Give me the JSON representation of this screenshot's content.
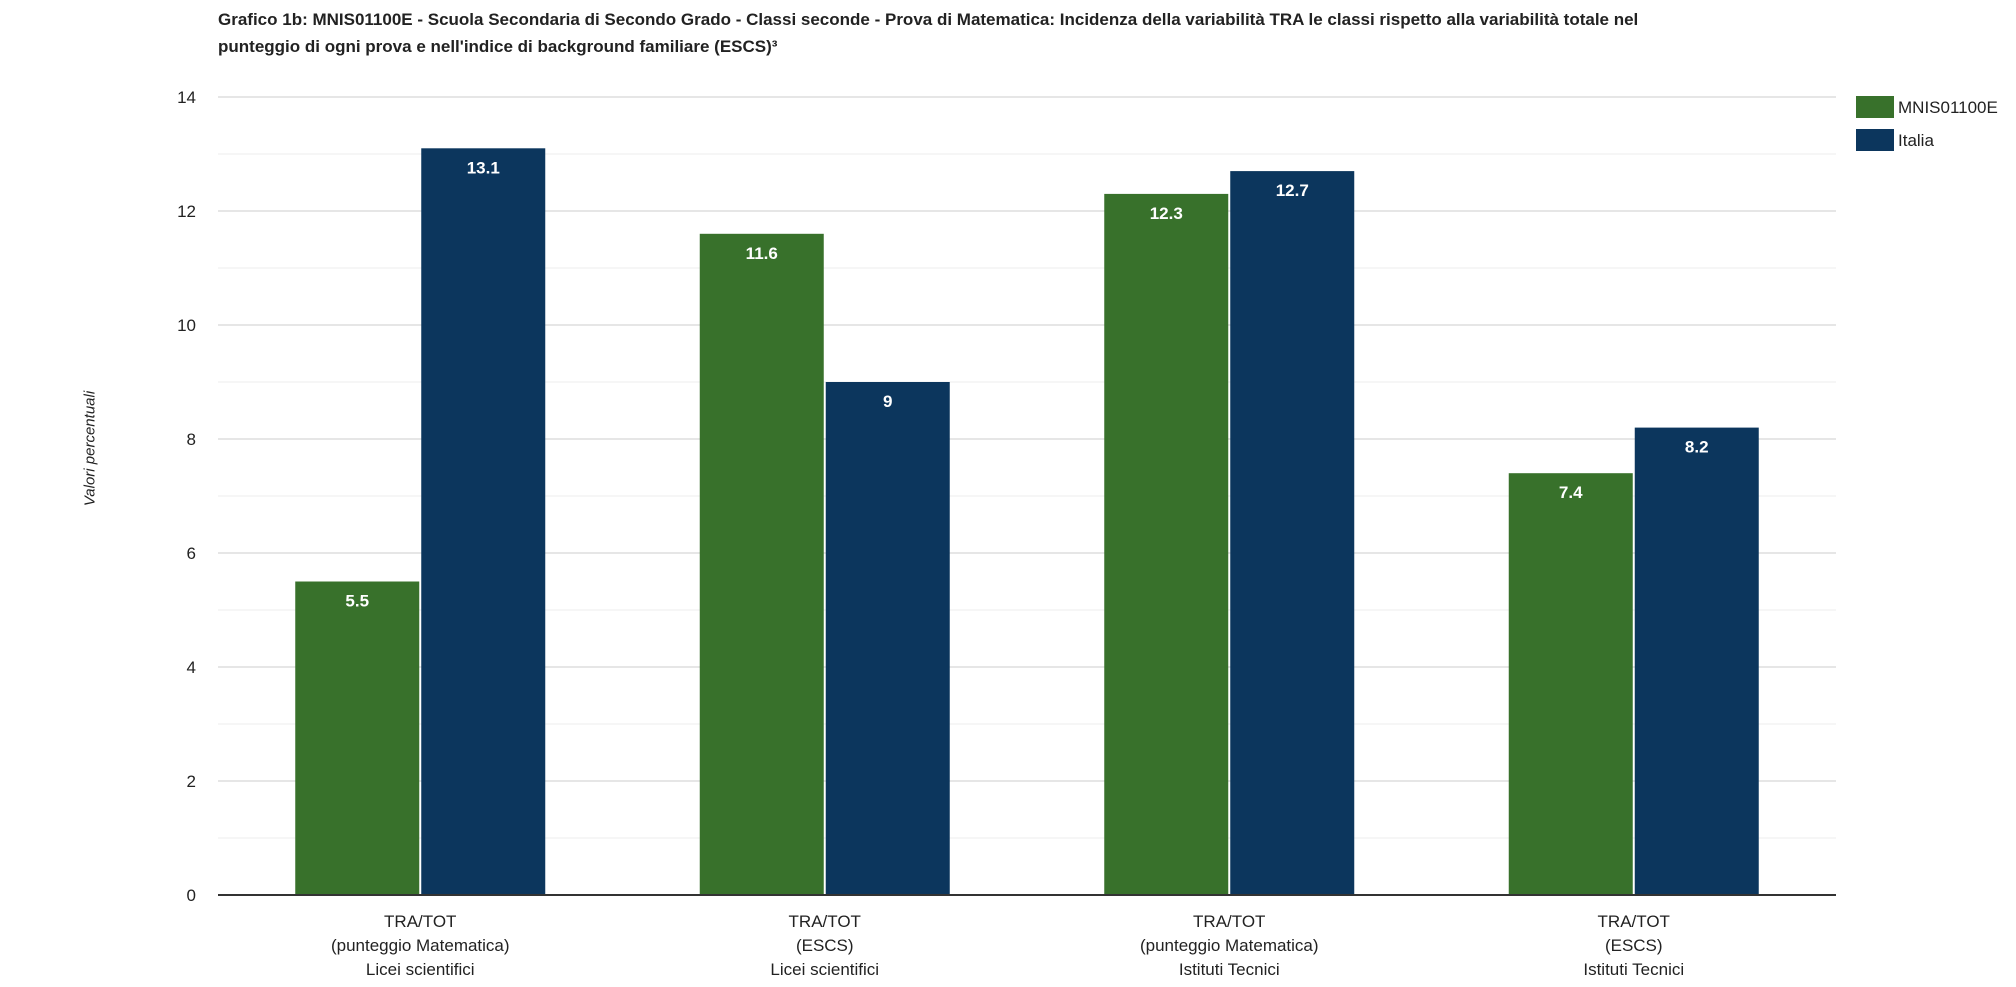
{
  "chart_data": {
    "type": "bar",
    "title_lines": [
      "Grafico 1b: MNIS01100E - Scuola Secondaria di Secondo Grado - Classi seconde - Prova di Matematica: Incidenza della variabilità TRA le classi rispetto alla variabilità totale nel",
      "punteggio di ogni prova e nell'indice di background familiare (ESCS)³"
    ],
    "ylabel": "Valori percentuali",
    "xlabel": "",
    "ylim": [
      0,
      14
    ],
    "yticks": [
      0,
      2,
      4,
      6,
      8,
      10,
      12,
      14
    ],
    "grid": true,
    "legend_position": "top-right",
    "categories": [
      [
        "TRA/TOT",
        "(punteggio Matematica)",
        "Licei scientifici"
      ],
      [
        "TRA/TOT",
        "(ESCS)",
        "Licei scientifici"
      ],
      [
        "TRA/TOT",
        "(punteggio Matematica)",
        "Istituti Tecnici"
      ],
      [
        "TRA/TOT",
        "(ESCS)",
        "Istituti Tecnici"
      ]
    ],
    "series": [
      {
        "name": "MNIS01100E",
        "color": "#38712b",
        "values": [
          5.5,
          11.6,
          12.3,
          7.4
        ],
        "labels": [
          "5.5",
          "11.6",
          "12.3",
          "7.4"
        ]
      },
      {
        "name": "Italia",
        "color": "#0c365d",
        "values": [
          13.1,
          9,
          12.7,
          8.2
        ],
        "labels": [
          "13.1",
          "9",
          "12.7",
          "8.2"
        ]
      }
    ]
  }
}
